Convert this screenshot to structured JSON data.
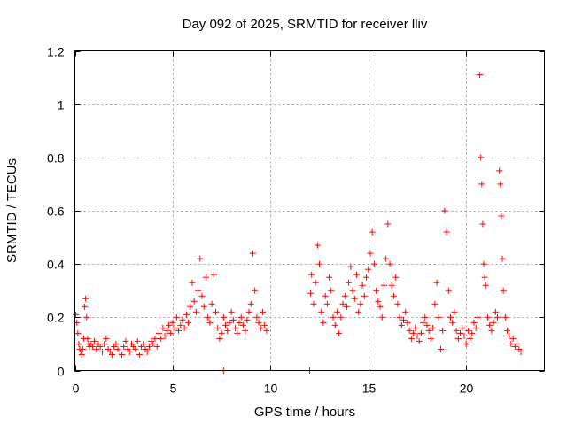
{
  "chart_data": {
    "type": "scatter",
    "title": "Day 092 of 2025, SRMTID for receiver lliv",
    "xlabel": "GPS time / hours",
    "ylabel": "SRMTID / TECUs",
    "xlim": [
      0,
      24
    ],
    "ylim": [
      0,
      1.2
    ],
    "xticks": [
      0,
      5,
      10,
      15,
      20
    ],
    "xtick_labels": [
      "0",
      "5",
      "10",
      "15",
      "20"
    ],
    "yticks": [
      0,
      0.2,
      0.4,
      0.6,
      0.8,
      1,
      1.2
    ],
    "ytick_labels": [
      "0",
      "0.2",
      "0.4",
      "0.6",
      "0.8",
      "1",
      "1.2"
    ],
    "grid": true,
    "marker": "+",
    "color": "#ff0000",
    "series": [
      {
        "name": "SRMTID",
        "x": [
          0.05,
          0.1,
          0.15,
          0.2,
          0.25,
          0.3,
          0.35,
          0.4,
          0.45,
          0.5,
          0.55,
          0.6,
          0.65,
          0.7,
          0.75,
          0.8,
          0.9,
          1.0,
          1.1,
          1.2,
          1.3,
          1.4,
          1.5,
          1.6,
          1.7,
          1.8,
          1.9,
          2.0,
          2.1,
          2.2,
          2.3,
          2.4,
          2.5,
          2.6,
          2.7,
          2.8,
          2.9,
          3.0,
          3.1,
          3.2,
          3.3,
          3.4,
          3.5,
          3.6,
          3.7,
          3.8,
          3.9,
          4.0,
          4.1,
          4.2,
          4.3,
          4.4,
          4.5,
          4.6,
          4.7,
          4.8,
          4.9,
          5.0,
          5.1,
          5.2,
          5.3,
          5.4,
          5.5,
          5.6,
          5.7,
          5.8,
          5.9,
          6.0,
          6.1,
          6.2,
          6.3,
          6.4,
          6.5,
          6.6,
          6.7,
          6.8,
          6.9,
          7.0,
          7.1,
          7.2,
          7.3,
          7.4,
          7.5,
          7.6,
          7.7,
          7.8,
          7.9,
          8.0,
          8.1,
          8.2,
          8.3,
          8.4,
          8.5,
          8.6,
          8.7,
          8.8,
          8.9,
          9.0,
          9.1,
          9.2,
          9.3,
          9.4,
          9.5,
          9.6,
          9.7,
          9.8,
          7.6,
          12.05,
          12.1,
          12.2,
          12.3,
          12.4,
          12.5,
          12.6,
          12.7,
          12.8,
          12.9,
          13.0,
          13.1,
          13.2,
          13.3,
          13.4,
          13.5,
          13.6,
          13.7,
          13.8,
          13.9,
          14.0,
          14.1,
          14.2,
          14.3,
          14.4,
          14.5,
          14.6,
          14.7,
          14.8,
          14.9,
          15.0,
          15.1,
          15.2,
          15.3,
          15.4,
          15.5,
          15.6,
          15.7,
          15.8,
          15.9,
          16.0,
          16.1,
          16.2,
          16.3,
          16.4,
          16.5,
          16.6,
          16.7,
          16.8,
          16.9,
          17.0,
          17.1,
          17.2,
          17.3,
          17.4,
          17.5,
          17.6,
          17.7,
          17.8,
          17.9,
          18.0,
          18.1,
          18.2,
          18.3,
          18.4,
          18.5,
          18.6,
          18.7,
          18.8,
          18.9,
          19.0,
          19.1,
          19.2,
          19.3,
          19.4,
          19.5,
          19.6,
          19.7,
          19.8,
          19.9,
          20.0,
          20.1,
          20.2,
          20.3,
          20.4,
          20.5,
          20.6,
          20.7,
          20.75,
          20.8,
          20.85,
          20.9,
          20.95,
          21.0,
          21.1,
          21.2,
          21.3,
          21.4,
          21.5,
          21.6,
          21.7,
          21.75,
          21.8,
          21.85,
          21.9,
          22.0,
          22.1,
          22.2,
          22.3,
          22.4,
          22.5,
          22.6,
          22.7,
          22.8,
          12.0
        ],
        "y": [
          0.21,
          0.18,
          0.14,
          0.1,
          0.08,
          0.07,
          0.06,
          0.08,
          0.12,
          0.24,
          0.27,
          0.2,
          0.12,
          0.1,
          0.09,
          0.1,
          0.09,
          0.11,
          0.08,
          0.1,
          0.09,
          0.07,
          0.1,
          0.12,
          0.08,
          0.07,
          0.06,
          0.09,
          0.1,
          0.08,
          0.07,
          0.06,
          0.09,
          0.11,
          0.08,
          0.07,
          0.1,
          0.09,
          0.08,
          0.11,
          0.06,
          0.09,
          0.1,
          0.08,
          0.07,
          0.09,
          0.11,
          0.1,
          0.12,
          0.09,
          0.14,
          0.12,
          0.16,
          0.13,
          0.15,
          0.17,
          0.14,
          0.18,
          0.16,
          0.2,
          0.15,
          0.17,
          0.19,
          0.16,
          0.21,
          0.18,
          0.24,
          0.33,
          0.26,
          0.22,
          0.3,
          0.42,
          0.28,
          0.24,
          0.35,
          0.2,
          0.18,
          0.25,
          0.36,
          0.22,
          0.16,
          0.12,
          0.14,
          0.2,
          0.17,
          0.15,
          0.18,
          0.22,
          0.19,
          0.16,
          0.14,
          0.18,
          0.2,
          0.17,
          0.15,
          0.19,
          0.22,
          0.25,
          0.44,
          0.3,
          0.2,
          0.18,
          0.16,
          0.22,
          0.17,
          0.15,
          0.0,
          0.29,
          0.36,
          0.25,
          0.33,
          0.47,
          0.4,
          0.22,
          0.18,
          0.28,
          0.25,
          0.35,
          0.3,
          0.2,
          0.17,
          0.22,
          0.14,
          0.2,
          0.25,
          0.28,
          0.24,
          0.33,
          0.39,
          0.3,
          0.27,
          0.36,
          0.22,
          0.25,
          0.32,
          0.28,
          0.35,
          0.38,
          0.44,
          0.52,
          0.4,
          0.3,
          0.26,
          0.24,
          0.2,
          0.32,
          0.42,
          0.55,
          0.4,
          0.32,
          0.28,
          0.35,
          0.25,
          0.2,
          0.17,
          0.19,
          0.22,
          0.18,
          0.15,
          0.12,
          0.14,
          0.16,
          0.13,
          0.11,
          0.14,
          0.18,
          0.2,
          0.17,
          0.15,
          0.12,
          0.16,
          0.25,
          0.33,
          0.2,
          0.08,
          0.15,
          0.6,
          0.52,
          0.3,
          0.2,
          0.18,
          0.22,
          0.15,
          0.12,
          0.14,
          0.16,
          0.13,
          0.1,
          0.15,
          0.12,
          0.14,
          0.18,
          0.16,
          0.2,
          1.11,
          0.8,
          0.7,
          0.55,
          0.4,
          0.35,
          0.32,
          0.2,
          0.17,
          0.15,
          0.18,
          0.22,
          0.2,
          0.75,
          0.7,
          0.58,
          0.42,
          0.3,
          0.2,
          0.15,
          0.13,
          0.1,
          0.12,
          0.09,
          0.1,
          0.08,
          0.07,
          0.0
        ]
      }
    ]
  }
}
